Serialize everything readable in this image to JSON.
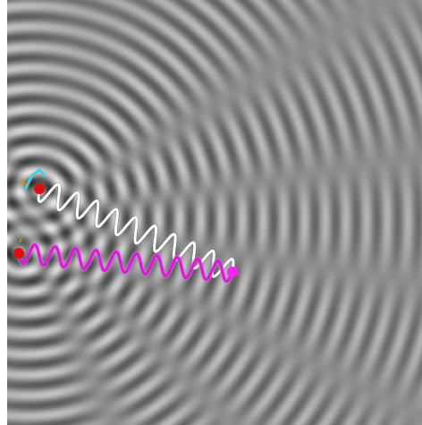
{
  "sim": {
    "wave_colors": {
      "dark": "#3a3a3a",
      "light": "#e8e8e8",
      "mid": "#8f8f8f"
    },
    "source_color": "#d81010",
    "path_a_color": "#ffffff",
    "path_b_color": "#d020d0",
    "path_b_light": "#e070e0",
    "start_a_color": "#40d0e0",
    "start_b_color": "#ff8040",
    "detector_color": "#ff20ff",
    "wavelength_units": 23,
    "source_count": 2
  }
}
